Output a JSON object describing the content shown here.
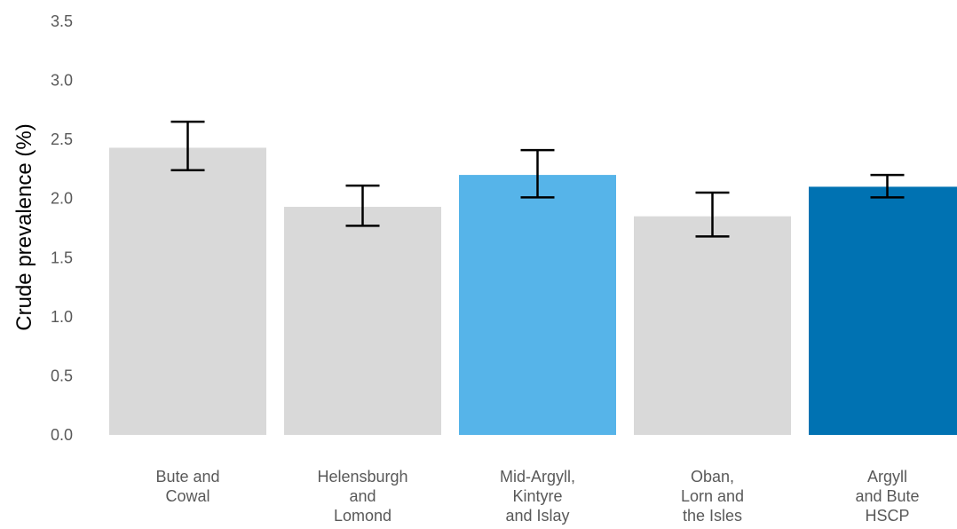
{
  "chart_data": {
    "type": "bar",
    "title": "",
    "xlabel": "",
    "ylabel": "Crude prevalence (%)",
    "ylim": [
      0,
      3.5
    ],
    "yticks": [
      "0.0",
      "0.5",
      "1.0",
      "1.5",
      "2.0",
      "2.5",
      "3.0",
      "3.5"
    ],
    "grid": false,
    "categories": [
      [
        "Bute and",
        "Cowal"
      ],
      [
        "Helensburgh",
        "and",
        "Lomond"
      ],
      [
        "Mid-Argyll,",
        "Kintyre",
        "and Islay"
      ],
      [
        "Oban,",
        "Lorn and",
        "the Isles"
      ],
      [
        "Argyll",
        "and Bute",
        "HSCP"
      ]
    ],
    "values": [
      2.43,
      1.93,
      2.2,
      1.85,
      2.1
    ],
    "error_low": [
      2.24,
      1.77,
      2.01,
      1.68,
      2.01
    ],
    "error_high": [
      2.65,
      2.11,
      2.41,
      2.05,
      2.2
    ],
    "colors": [
      "#d9d9d9",
      "#d9d9d9",
      "#56b4e9",
      "#d9d9d9",
      "#0072b2"
    ]
  }
}
